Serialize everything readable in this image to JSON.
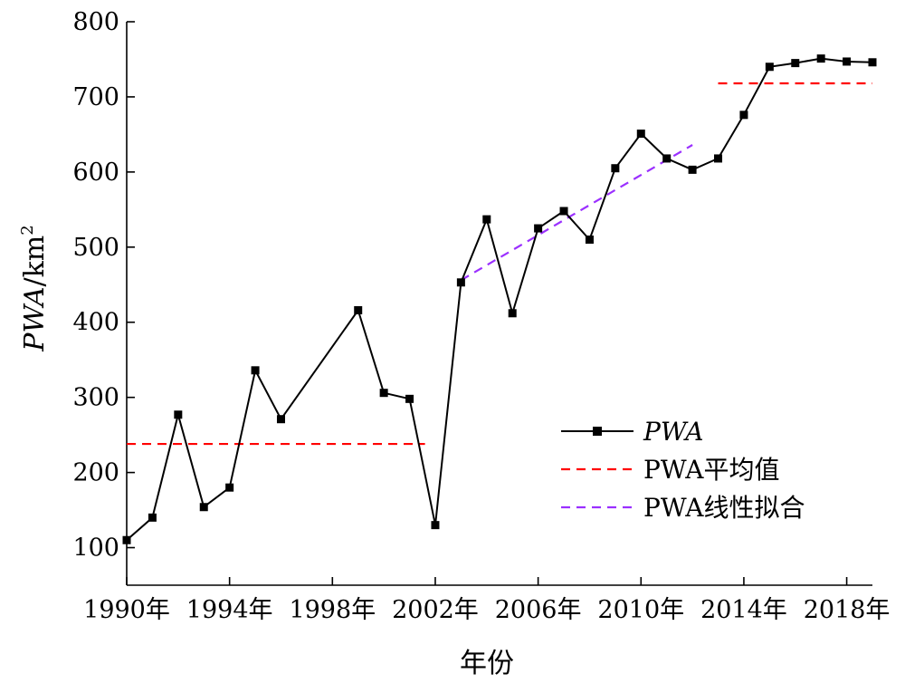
{
  "chart_data": {
    "type": "line",
    "xlabel": "年份",
    "ylabel": "PWA/km²",
    "ylabel_main": "PWA",
    "ylabel_unit": "/km",
    "ylabel_sup": "2",
    "xlim": [
      1990,
      2019
    ],
    "ylim": [
      50,
      800
    ],
    "x_ticks": [
      1990,
      1994,
      1998,
      2002,
      2006,
      2010,
      2014,
      2018
    ],
    "x_tick_labels": [
      "1990年",
      "1994年",
      "1998年",
      "2002年",
      "2006年",
      "2010年",
      "2014年",
      "2018年"
    ],
    "y_ticks": [
      100,
      200,
      300,
      400,
      500,
      600,
      700,
      800
    ],
    "y_tick_labels": [
      "100",
      "200",
      "300",
      "400",
      "500",
      "600",
      "700",
      "800"
    ],
    "grid": false,
    "legend_position": "bottom-right",
    "series": [
      {
        "name": "PWA",
        "style": "line-square-markers",
        "color": "#000000",
        "x": [
          1990,
          1991,
          1992,
          1993,
          1994,
          1995,
          1996,
          1999,
          2000,
          2001,
          2002,
          2003,
          2004,
          2005,
          2006,
          2007,
          2008,
          2009,
          2010,
          2011,
          2012,
          2013,
          2014,
          2015,
          2016,
          2017,
          2018,
          2019
        ],
        "y": [
          110,
          140,
          277,
          154,
          180,
          336,
          271,
          416,
          306,
          298,
          130,
          453,
          537,
          412,
          525,
          548,
          510,
          605,
          651,
          618,
          603,
          618,
          676,
          740,
          745,
          751,
          747,
          746
        ]
      },
      {
        "name": "PWA平均值",
        "style": "dashed",
        "color": "#ff0000",
        "segments": [
          {
            "x": [
              1990,
              2001.6
            ],
            "y": [
              238,
              238
            ]
          },
          {
            "x": [
              2013,
              2019
            ],
            "y": [
              718,
              718
            ]
          }
        ]
      },
      {
        "name": "PWA线性拟合",
        "style": "dashed",
        "color": "#9b30ff",
        "x": [
          2003,
          2012
        ],
        "y": [
          456,
          636
        ]
      }
    ]
  }
}
